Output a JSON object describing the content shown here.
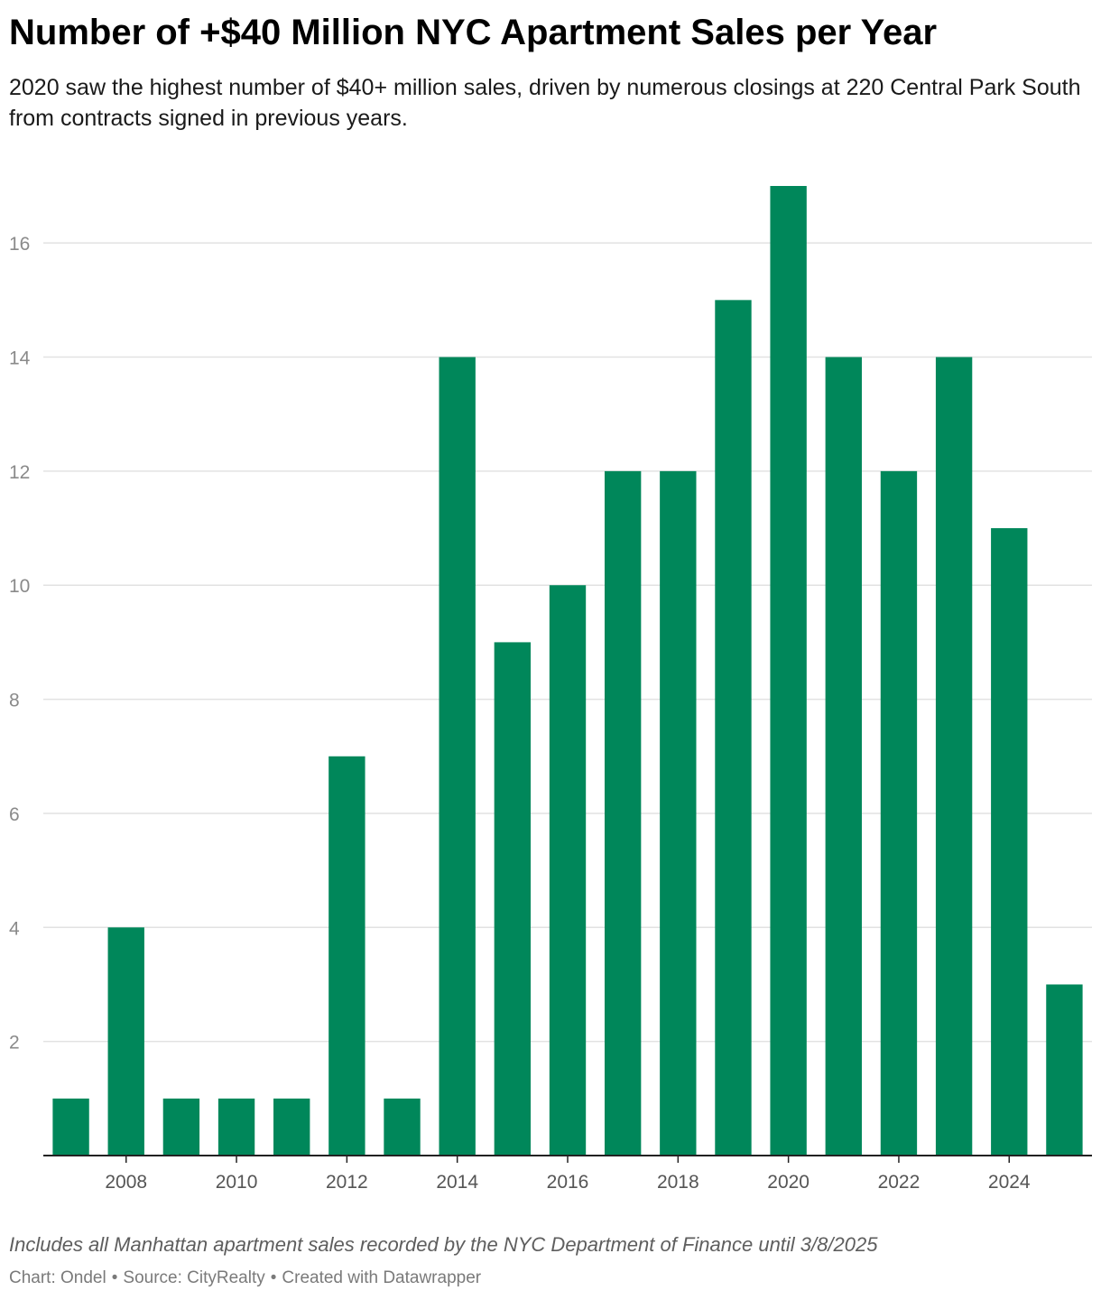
{
  "header": {
    "title": "Number of +$40 Million NYC Apartment Sales per Year",
    "subtitle": "2020 saw the highest number of $40+ million sales, driven by numerous closings at 220 Central Park South from contracts signed in previous years."
  },
  "chart_data": {
    "type": "bar",
    "categories": [
      "2007",
      "2008",
      "2009",
      "2010",
      "2011",
      "2012",
      "2013",
      "2014",
      "2015",
      "2016",
      "2017",
      "2018",
      "2019",
      "2020",
      "2021",
      "2022",
      "2023",
      "2024",
      "2025"
    ],
    "values": [
      1,
      4,
      1,
      1,
      1,
      7,
      1,
      14,
      9,
      10,
      12,
      12,
      15,
      17,
      14,
      12,
      14,
      11,
      3
    ],
    "x_tick_labels": [
      "2008",
      "2010",
      "2012",
      "2014",
      "2016",
      "2018",
      "2020",
      "2022",
      "2024"
    ],
    "y_ticks": [
      2,
      4,
      6,
      8,
      10,
      12,
      14,
      16
    ],
    "ylim": [
      0,
      17
    ],
    "grid": true,
    "bar_color": "#00875a",
    "xlabel": "",
    "ylabel": ""
  },
  "footer": {
    "notes": "Includes all Manhattan apartment sales recorded by the NYC Department of Finance until 3/8/2025",
    "chart_credit": "Chart: Ondel",
    "source": "Source: CityRealty",
    "created_with": "Created with Datawrapper",
    "separator": "•"
  }
}
